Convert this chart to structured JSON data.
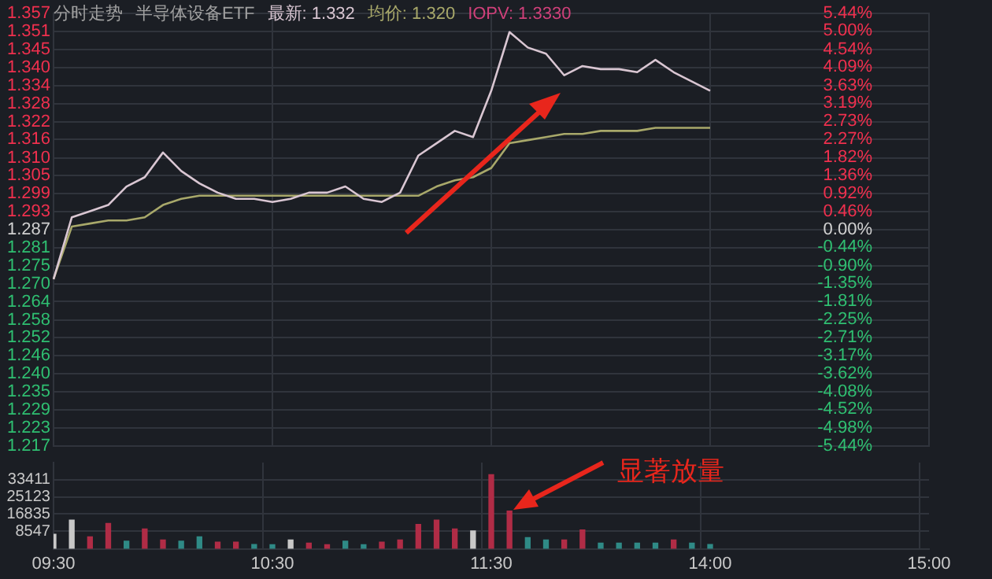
{
  "chart_data": [
    {
      "type": "line",
      "title": "分时走势",
      "subtitle": "半导体设备ETF",
      "annotations": [
        "IOPV: 1.3330"
      ],
      "legend": "top left",
      "grid": true,
      "tick_labels": "y",
      "marker": "none",
      "categories": [
        null,
        null,
        null,
        null,
        null,
        null,
        null,
        null,
        null,
        null,
        null,
        null,
        null,
        null,
        null,
        null,
        null,
        null,
        null,
        null,
        null,
        null,
        null,
        null,
        null,
        null,
        null,
        null,
        null,
        null,
        null,
        null,
        null,
        null,
        null,
        null,
        null,
        null,
        null,
        null,
        null,
        null,
        null,
        null,
        null,
        null,
        null,
        null,
        null
      ],
      "ylim": [
        1.217,
        1.357
      ],
      "yticks": [
        1.357,
        {
          "value": 1.3512,
          "label": "1.351"
        },
        {
          "value": 1.3453,
          "label": "1.345"
        },
        {
          "value": 1.3395,
          "label": "1.340"
        },
        {
          "value": 1.3337,
          "label": "1.334"
        },
        {
          "value": 1.3278,
          "label": "1.328"
        },
        1.322,
        {
          "value": 1.3162,
          "label": "1.316"
        },
        {
          "value": 1.3103,
          "label": "1.310"
        },
        {
          "value": 1.3045,
          "label": "1.305"
        },
        {
          "value": 1.2987,
          "label": "1.299"
        },
        {
          "value": 1.2928,
          "label": "1.293"
        },
        1.287,
        {
          "value": 1.2812,
          "label": "1.281"
        },
        {
          "value": 1.2753,
          "label": "1.275"
        },
        {
          "value": 1.2695,
          "label": "1.270"
        },
        {
          "value": 1.2637,
          "label": "1.264"
        },
        {
          "value": 1.2578,
          "label": "1.258"
        },
        1.252,
        {
          "value": 1.2462,
          "label": "1.246"
        },
        {
          "value": 1.2403,
          "label": "1.240"
        },
        {
          "value": 1.2345,
          "label": "1.235"
        },
        {
          "value": 1.2287,
          "label": "1.229"
        },
        {
          "value": 1.2228,
          "label": "1.223"
        },
        1.217
      ],
      "y2lim": [
        -5.44,
        5.44
      ],
      "y2ticks": [
        {
          "value": 5.44,
          "label": "5.44%"
        },
        {
          "value": 5.0,
          "label": "5.00%"
        },
        {
          "value": 4.54,
          "label": "4.54%"
        },
        {
          "value": 4.09,
          "label": "4.09%"
        },
        {
          "value": 3.63,
          "label": "3.63%"
        },
        {
          "value": 3.19,
          "label": "3.19%"
        },
        {
          "value": 2.73,
          "label": "2.73%"
        },
        {
          "value": 2.27,
          "label": "2.27%"
        },
        {
          "value": 1.82,
          "label": "1.82%"
        },
        {
          "value": 1.36,
          "label": "1.36%"
        },
        {
          "value": 0.92,
          "label": "0.92%"
        },
        {
          "value": 0.46,
          "label": "0.46%"
        },
        {
          "value": 0,
          "label": "0.00%"
        },
        {
          "value": -0.44,
          "label": "-0.44%"
        },
        {
          "value": -0.9,
          "label": "-0.90%"
        },
        {
          "value": -1.35,
          "label": "-1.35%"
        },
        {
          "value": -1.81,
          "label": "-1.81%"
        },
        {
          "value": -2.25,
          "label": "-2.25%"
        },
        {
          "value": -2.71,
          "label": "-2.71%"
        },
        {
          "value": -3.17,
          "label": "-3.17%"
        },
        {
          "value": -3.62,
          "label": "-3.62%"
        },
        {
          "value": -4.08,
          "label": "-4.08%"
        },
        {
          "value": -4.52,
          "label": "-4.52%"
        },
        {
          "value": -4.98,
          "label": "-4.98%"
        },
        {
          "value": -5.44,
          "label": "-5.44%"
        }
      ],
      "series": [
        {
          "name": "最新: 1.332",
          "color": "#d9c6d2",
          "values": [
            1.271,
            1.291,
            1.293,
            1.295,
            1.301,
            1.304,
            1.312,
            1.306,
            1.302,
            1.299,
            1.297,
            1.297,
            1.296,
            1.297,
            1.299,
            1.299,
            1.301,
            1.297,
            1.296,
            1.299,
            1.311,
            1.315,
            1.319,
            1.317,
            1.332,
            1.351,
            1.346,
            1.344,
            1.337,
            1.34,
            1.339,
            1.339,
            1.338,
            1.342,
            1.338,
            1.335,
            1.332,
            null,
            null,
            null,
            null,
            null,
            null,
            null,
            null,
            null,
            null,
            null,
            null
          ]
        },
        {
          "name": "均价: 1.320",
          "color": "#a8a86a",
          "values": [
            1.271,
            1.288,
            1.289,
            1.29,
            1.29,
            1.291,
            1.295,
            1.297,
            1.298,
            1.298,
            1.298,
            1.298,
            1.298,
            1.298,
            1.298,
            1.298,
            1.298,
            1.298,
            1.298,
            1.298,
            1.298,
            1.301,
            1.303,
            1.304,
            1.307,
            1.315,
            1.316,
            1.317,
            1.318,
            1.318,
            1.319,
            1.319,
            1.319,
            1.32,
            1.32,
            1.32,
            1.32,
            null,
            null,
            null,
            null,
            null,
            null,
            null,
            null,
            null,
            null,
            null,
            null
          ]
        }
      ]
    },
    {
      "type": "bar",
      "annotations": [
        "显著放量"
      ],
      "grid": true,
      "categories": [
        "09:30",
        null,
        null,
        null,
        null,
        null,
        null,
        null,
        null,
        null,
        null,
        null,
        "10:30",
        null,
        null,
        null,
        null,
        null,
        null,
        null,
        null,
        null,
        null,
        null,
        "11:30",
        null,
        null,
        null,
        null,
        null,
        null,
        null,
        null,
        null,
        null,
        null,
        "14:00",
        null,
        null,
        null,
        null,
        null,
        null,
        null,
        null,
        null,
        null,
        null,
        "15:00"
      ],
      "ylim": [
        0,
        41699
      ],
      "yticks": [
        8547,
        16835,
        25123,
        33411
      ],
      "values": [
        7000,
        13900,
        5800,
        12200,
        3700,
        9600,
        4300,
        3700,
        5800,
        3200,
        3200,
        2100,
        2000,
        4300,
        2700,
        2000,
        3700,
        2000,
        3200,
        4300,
        11800,
        13900,
        9600,
        8600,
        35800,
        18200,
        5400,
        4300,
        4300,
        9100,
        2700,
        2700,
        2700,
        2700,
        4300,
        2700,
        2100,
        null,
        null,
        null,
        null,
        null,
        null,
        null,
        null,
        null,
        null,
        null,
        null
      ],
      "colors": [
        "#c8c8c8",
        "#c8c8c8",
        "#b02c46",
        "#b02c46",
        "#2f8a86",
        "#b02c46",
        "#b02c46",
        "#2f8a86",
        "#2f8a86",
        "#b02c46",
        "#b02c46",
        "#2f8a86",
        "#2f8a86",
        "#c8c8c8",
        "#b02c46",
        "#b02c46",
        "#2f8a86",
        "#2f8a86",
        "#b02c46",
        "#b02c46",
        "#b02c46",
        "#b02c46",
        "#b02c46",
        "#c8c8c8",
        "#b02c46",
        "#b02c46",
        "#2f8a86",
        "#2f8a86",
        "#b02c46",
        "#b02c46",
        "#2f8a86",
        "#2f8a86",
        "#2f8a86",
        "#2f8a86",
        "#b02c46",
        "#2f8a86",
        "#2f8a86",
        "#2f8a86",
        "#2f8a86",
        "#2f8a86",
        "#2f8a86",
        "#2f8a86",
        "#2f8a86",
        "#2f8a86",
        "#2f8a86",
        "#2f8a86",
        "#2f8a86",
        "#2f8a86",
        "#2f8a86"
      ]
    }
  ]
}
